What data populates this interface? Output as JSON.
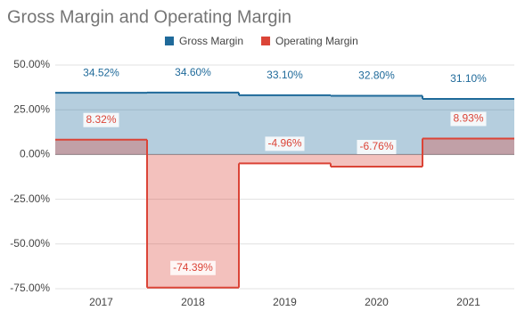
{
  "chart_data": {
    "type": "stepped-area",
    "title": "Gross Margin and Operating Margin",
    "categories": [
      "2017",
      "2018",
      "2019",
      "2020",
      "2021"
    ],
    "series": [
      {
        "name": "Gross Margin",
        "color": "#1f6a9a",
        "values": [
          34.52,
          34.6,
          33.1,
          32.8,
          31.1
        ],
        "value_labels": [
          "34.52%",
          "34.60%",
          "33.10%",
          "32.80%",
          "31.10%"
        ]
      },
      {
        "name": "Operating Margin",
        "color": "#db4437",
        "values": [
          8.32,
          -74.39,
          -4.96,
          -6.76,
          8.93
        ],
        "value_labels": [
          "8.32%",
          "-74.39%",
          "-4.96%",
          "-6.76%",
          "8.93%"
        ]
      }
    ],
    "ylim": [
      -75,
      50
    ],
    "yticks": [
      {
        "value": -75,
        "label": "-75.00%"
      },
      {
        "value": -50,
        "label": "-50.00%"
      },
      {
        "value": -25,
        "label": "-25.00%"
      },
      {
        "value": 0,
        "label": "0.00%"
      },
      {
        "value": 25,
        "label": "25.00%"
      },
      {
        "value": 50,
        "label": "50.00%"
      }
    ],
    "grid": true,
    "legend": "top"
  }
}
